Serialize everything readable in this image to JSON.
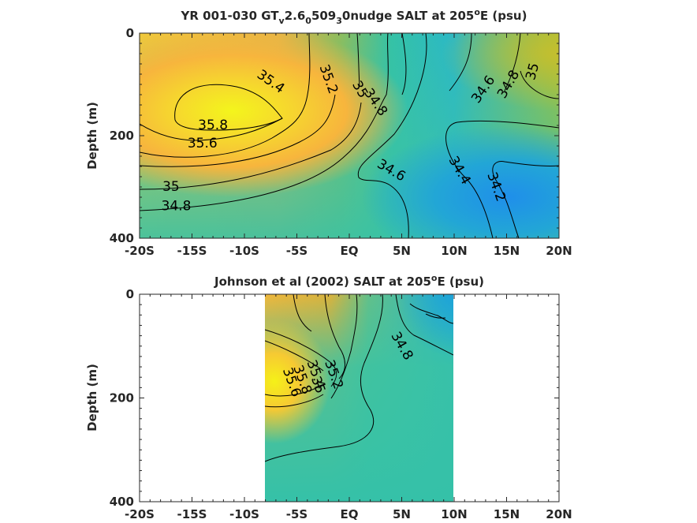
{
  "chart_data": [
    {
      "type": "heatmap",
      "title_main": "YR 001-030 GT",
      "title_sub1": "v",
      "title_mid1": "2.6",
      "title_sub2": "0",
      "title_mid2": "509",
      "title_sub3": "3",
      "title_tail1": "0nudge SALT at 205",
      "title_sup": "o",
      "title_tail2": "E (psu)",
      "ylabel": "Depth (m)",
      "xlim": [
        -20,
        20
      ],
      "ylim": [
        0,
        400
      ],
      "x_ticks": [
        -20,
        -15,
        -10,
        -5,
        0,
        5,
        10,
        15,
        20
      ],
      "x_tick_labels": [
        "-20S",
        "-15S",
        "-10S",
        "-5S",
        "EQ",
        "5N",
        "10N",
        "15N",
        "20N"
      ],
      "y_ticks": [
        0,
        200,
        400
      ],
      "y_tick_labels": [
        "0",
        "200",
        "400"
      ],
      "colormap": "parula",
      "contour_labels": [
        {
          "text": "35.4",
          "x": -7.5,
          "y": 95,
          "rot": 35
        },
        {
          "text": "35.2",
          "x": -2.0,
          "y": 90,
          "rot": 70
        },
        {
          "text": "35",
          "x": 1.0,
          "y": 110,
          "rot": 60
        },
        {
          "text": "34.8",
          "x": 2.5,
          "y": 135,
          "rot": 55
        },
        {
          "text": "34.6",
          "x": 12.8,
          "y": 110,
          "rot": -55
        },
        {
          "text": "34.8",
          "x": 15.2,
          "y": 100,
          "rot": -60
        },
        {
          "text": "35",
          "x": 17.5,
          "y": 75,
          "rot": -75
        },
        {
          "text": "35.8",
          "x": -13.0,
          "y": 180,
          "rot": 0
        },
        {
          "text": "35.6",
          "x": -14.0,
          "y": 215,
          "rot": 0
        },
        {
          "text": "34.6",
          "x": 4.0,
          "y": 268,
          "rot": 30
        },
        {
          "text": "34.4",
          "x": 10.5,
          "y": 268,
          "rot": 60
        },
        {
          "text": "34.2",
          "x": 14.0,
          "y": 300,
          "rot": 70
        },
        {
          "text": "35",
          "x": -17.0,
          "y": 300,
          "rot": 0
        },
        {
          "text": "34.8",
          "x": -16.5,
          "y": 338,
          "rot": 0
        }
      ]
    },
    {
      "type": "heatmap",
      "title_main": "Johnson et al (2002) SALT at 205",
      "title_sup": "o",
      "title_tail": "E (psu)",
      "ylabel": "Depth (m)",
      "xlim": [
        -20,
        20
      ],
      "ylim": [
        0,
        400
      ],
      "data_x_range": [
        -8,
        10
      ],
      "x_ticks": [
        -20,
        -15,
        -10,
        -5,
        0,
        5,
        10,
        15,
        20
      ],
      "x_tick_labels": [
        "-20S",
        "-15S",
        "-10S",
        "-5S",
        "EQ",
        "5N",
        "10N",
        "15N",
        "20N"
      ],
      "y_ticks": [
        0,
        200,
        400
      ],
      "y_tick_labels": [
        "0",
        "200",
        "400"
      ],
      "colormap": "parula",
      "contour_labels": [
        {
          "text": "34.8",
          "x": 5.0,
          "y": 100,
          "rot": 60
        },
        {
          "text": "35",
          "x": -3.0,
          "y": 175,
          "rot": 70
        },
        {
          "text": "35.4",
          "x": -3.2,
          "y": 155,
          "rot": 70
        },
        {
          "text": "35.8",
          "x": -4.5,
          "y": 165,
          "rot": 70
        },
        {
          "text": "35.6",
          "x": -5.5,
          "y": 170,
          "rot": 70
        },
        {
          "text": "35.2",
          "x": -1.5,
          "y": 155,
          "rot": 70
        }
      ]
    }
  ]
}
